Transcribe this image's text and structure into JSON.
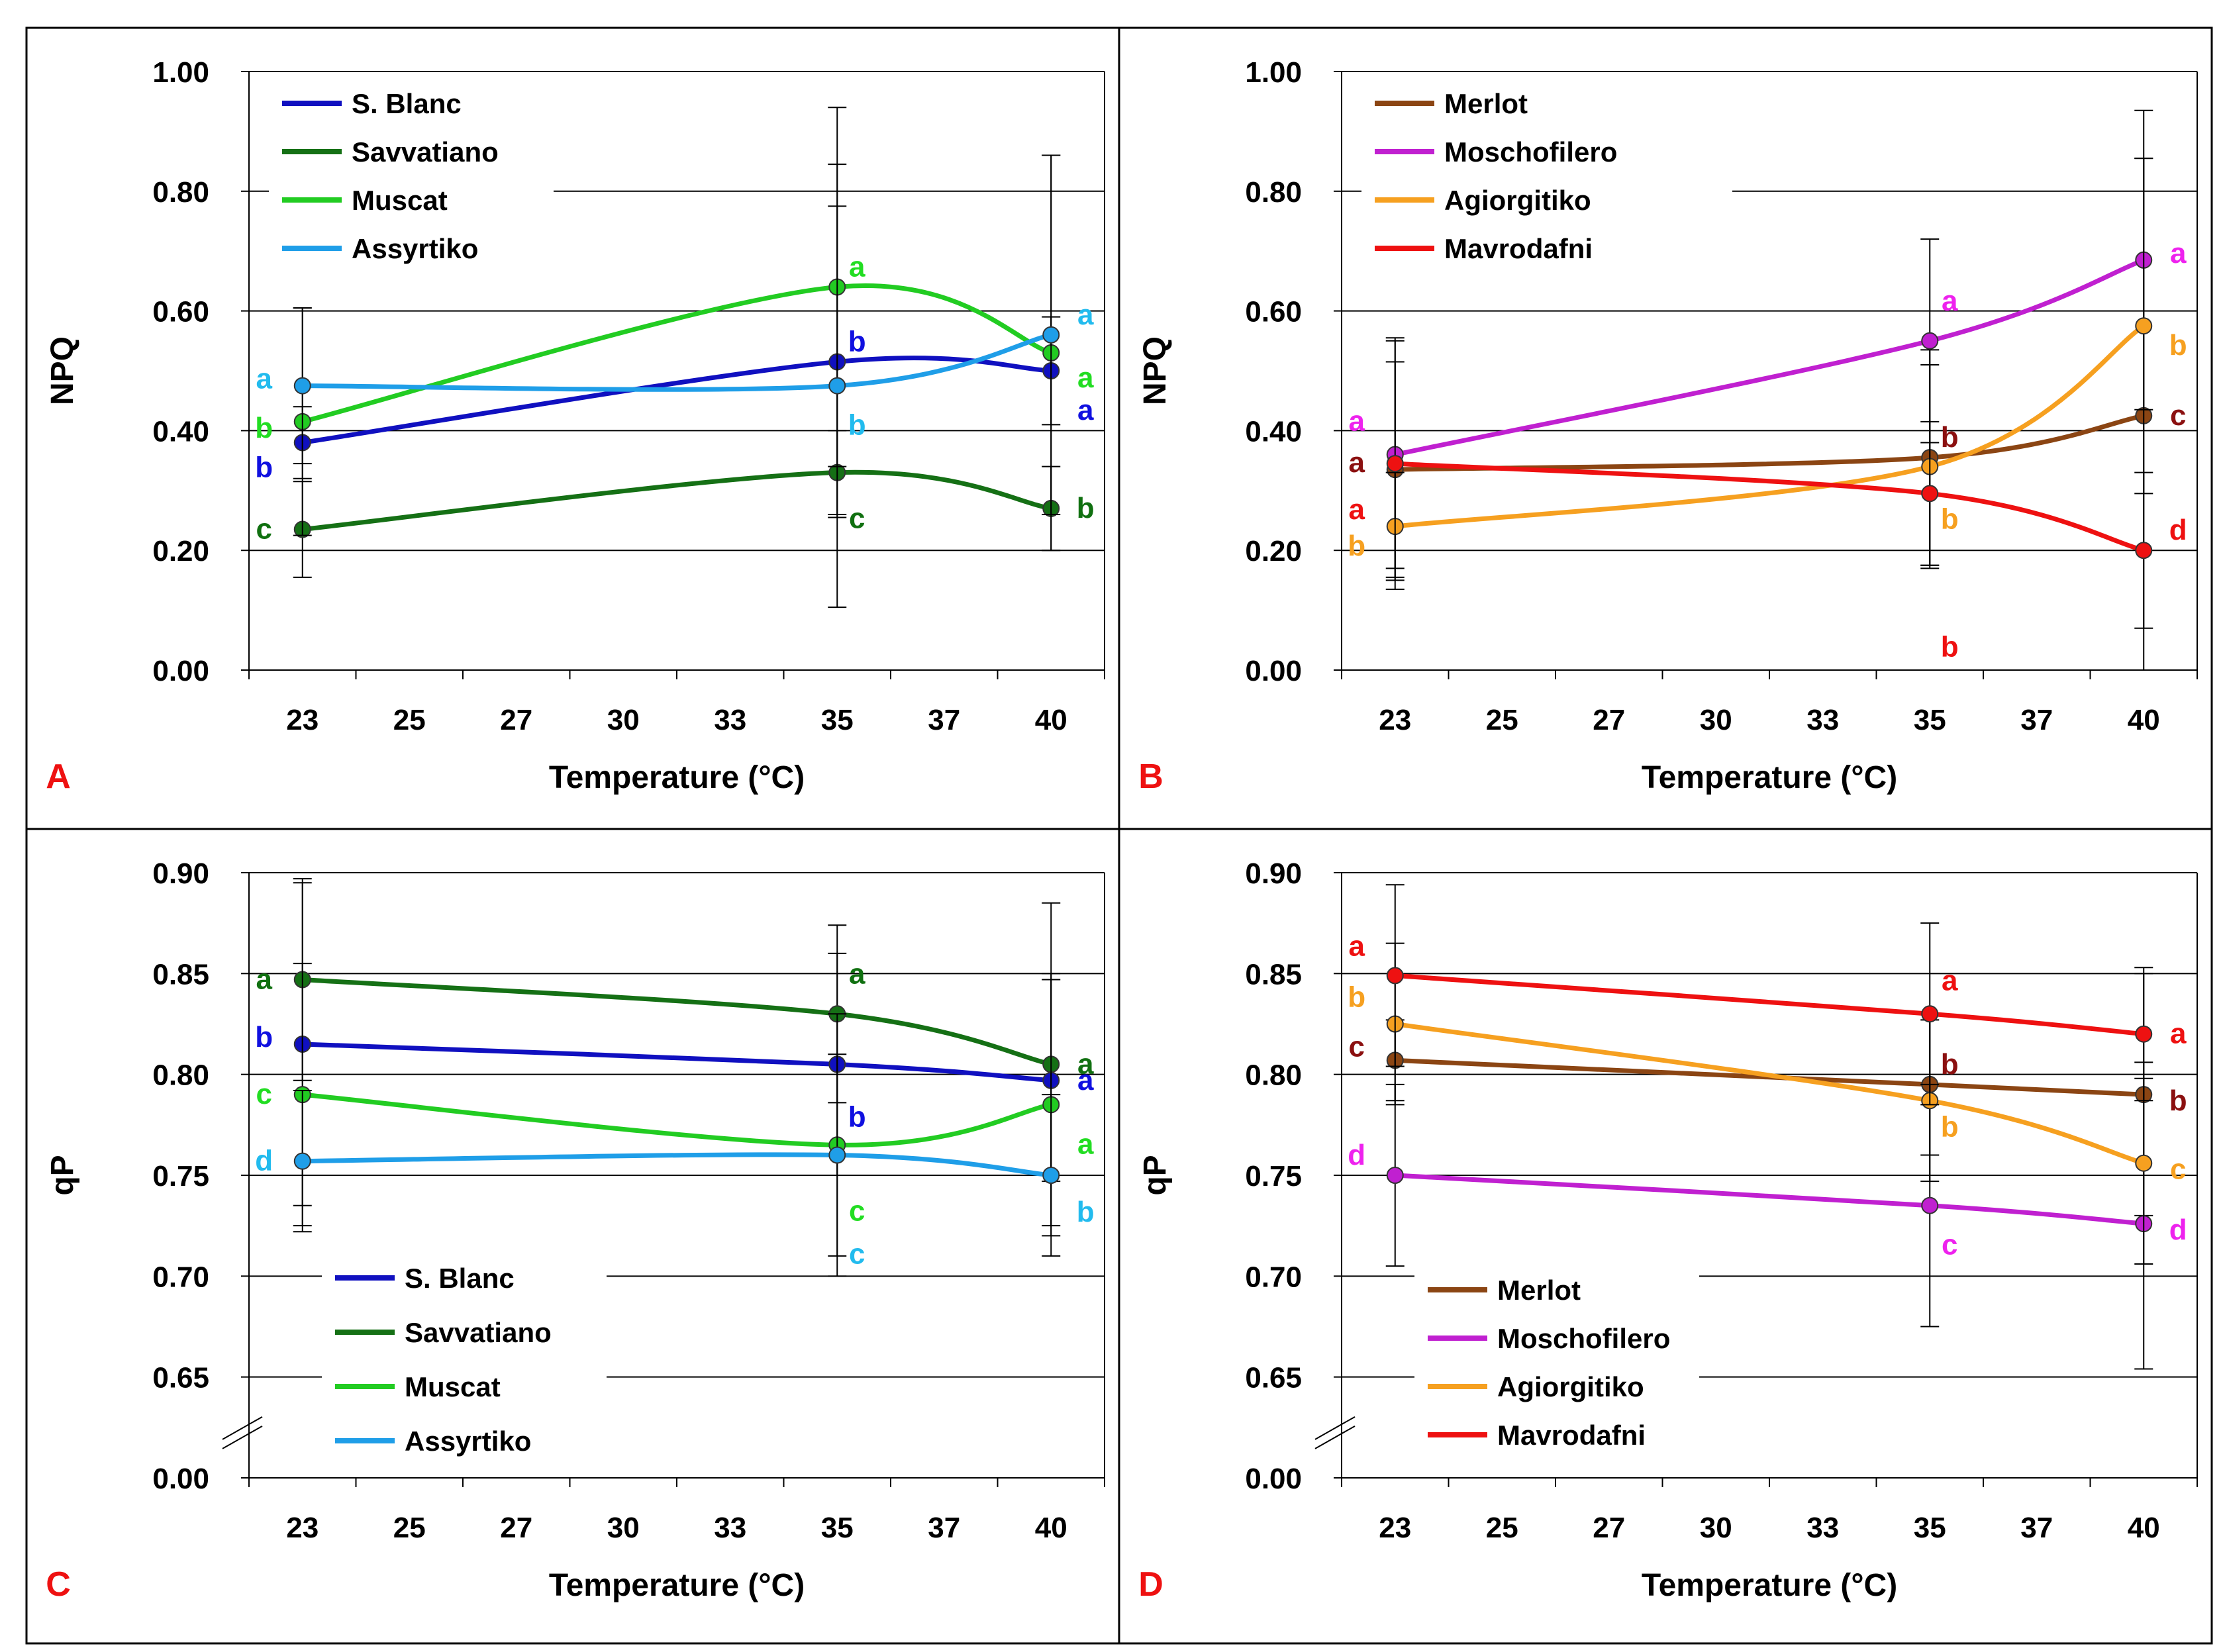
{
  "chart_data": [
    {
      "type": "line",
      "panel_label": "A",
      "xlabel": "Temperature (°C)",
      "ylabel": "NPQ",
      "x_ticks": [
        "23",
        "25",
        "27",
        "30",
        "33",
        "35",
        "37",
        "40"
      ],
      "x_points": [
        "23",
        "35",
        "40"
      ],
      "y_ticks": [
        "0.00",
        "0.20",
        "0.40",
        "0.60",
        "0.80",
        "1.00"
      ],
      "ylim": [
        0,
        1
      ],
      "grid": true,
      "legend_position": "top-left",
      "series": [
        {
          "name": "S. Blanc",
          "color": "#1010c0",
          "label_color": "#1010e0",
          "values": [
            0.38,
            0.515,
            0.5
          ],
          "errors": [
            0.06,
            0.26,
            0.09
          ],
          "letters": [
            "b",
            "b",
            "a"
          ]
        },
        {
          "name": "Savvatiano",
          "color": "#157015",
          "label_color": "#107010",
          "values": [
            0.235,
            0.33,
            0.27
          ],
          "errors": [
            0.08,
            0.07,
            0.07
          ],
          "letters": [
            "c",
            "c",
            "b"
          ]
        },
        {
          "name": "Muscat",
          "color": "#22cc22",
          "label_color": "#22dd22",
          "values": [
            0.415,
            0.64,
            0.53
          ],
          "errors": [
            0.19,
            0.3,
            0.33
          ],
          "letters": [
            "b",
            "a",
            "a"
          ]
        },
        {
          "name": "Assyrtiko",
          "color": "#1f9ee8",
          "label_color": "#22bbee",
          "values": [
            0.475,
            0.475,
            0.56
          ],
          "errors": [
            0.13,
            0.37,
            0.3
          ],
          "letters": [
            "a",
            "b",
            "a"
          ]
        }
      ]
    },
    {
      "type": "line",
      "panel_label": "B",
      "xlabel": "Temperature (°C)",
      "ylabel": "NPQ",
      "x_ticks": [
        "23",
        "25",
        "27",
        "30",
        "33",
        "35",
        "37",
        "40"
      ],
      "x_points": [
        "23",
        "35",
        "40"
      ],
      "y_ticks": [
        "0.00",
        "0.20",
        "0.40",
        "0.60",
        "0.80",
        "1.00"
      ],
      "ylim": [
        0,
        1
      ],
      "grid": true,
      "legend_position": "top-left",
      "series": [
        {
          "name": "Merlot",
          "color": "#8b4513",
          "label_color": "#8b1010",
          "values": [
            0.335,
            0.355,
            0.425
          ],
          "errors": [
            0.18,
            0.18,
            0.43
          ],
          "letters": [
            "a",
            "b",
            "c"
          ]
        },
        {
          "name": "Moschofilero",
          "color": "#c020d0",
          "label_color": "#ee22ee",
          "values": [
            0.36,
            0.55,
            0.685
          ],
          "errors": [
            0.19,
            0.17,
            0.25
          ],
          "letters": [
            "a",
            "a",
            "a"
          ]
        },
        {
          "name": "Agiorgitiko",
          "color": "#f6a020",
          "label_color": "#f6a020",
          "values": [
            0.24,
            0.34,
            0.575
          ],
          "errors": [
            0.09,
            0.17,
            0.28
          ],
          "letters": [
            "b",
            "b",
            "b"
          ]
        },
        {
          "name": "Mavrodafni",
          "color": "#ee1111",
          "label_color": "#ee1111",
          "values": [
            0.345,
            0.295,
            0.2
          ],
          "errors": [
            0.21,
            0.12,
            0.13
          ],
          "letters": [
            "a",
            "b",
            "d"
          ]
        }
      ]
    },
    {
      "type": "line",
      "panel_label": "C",
      "xlabel": "Temperature (°C)",
      "ylabel": "qP",
      "x_ticks": [
        "23",
        "25",
        "27",
        "30",
        "33",
        "35",
        "37",
        "40"
      ],
      "x_points": [
        "23",
        "35",
        "40"
      ],
      "y_ticks": [
        "0.00",
        "0.65",
        "0.70",
        "0.75",
        "0.80",
        "0.85",
        "0.90"
      ],
      "ylim": [
        0.6,
        0.9
      ],
      "axis_break": "between 0.00 and 0.65",
      "grid": true,
      "legend_position": "bottom-left",
      "series": [
        {
          "name": "S. Blanc",
          "color": "#1010c0",
          "label_color": "#1010e0",
          "values": [
            0.815,
            0.805,
            0.797
          ],
          "errors": [
            0.08,
            0.055,
            0.05
          ],
          "letters": [
            "b",
            "b",
            "a"
          ]
        },
        {
          "name": "Savvatiano",
          "color": "#157015",
          "label_color": "#107010",
          "values": [
            0.847,
            0.83,
            0.805
          ],
          "errors": [
            0.05,
            0.044,
            0.08
          ],
          "letters": [
            "a",
            "a",
            "a"
          ]
        },
        {
          "name": "Muscat",
          "color": "#22cc22",
          "label_color": "#22dd22",
          "values": [
            0.79,
            0.765,
            0.785
          ],
          "errors": [
            0.065,
            0.065,
            0.065
          ],
          "letters": [
            "c",
            "c",
            "a"
          ]
        },
        {
          "name": "Assyrtiko",
          "color": "#1f9ee8",
          "label_color": "#22bbee",
          "values": [
            0.757,
            0.76,
            0.75
          ],
          "errors": [
            0.035,
            0.05,
            0.04
          ],
          "letters": [
            "d",
            "c",
            "b"
          ]
        }
      ]
    },
    {
      "type": "line",
      "panel_label": "D",
      "xlabel": "Temperature (°C)",
      "ylabel": "qP",
      "x_ticks": [
        "23",
        "25",
        "27",
        "30",
        "33",
        "35",
        "37",
        "40"
      ],
      "x_points": [
        "23",
        "35",
        "40"
      ],
      "y_ticks": [
        "0.00",
        "0.65",
        "0.70",
        "0.75",
        "0.80",
        "0.85",
        "0.90"
      ],
      "ylim": [
        0.6,
        0.9
      ],
      "axis_break": "between 0.00 and 0.65",
      "grid": true,
      "legend_position": "bottom-left",
      "series": [
        {
          "name": "Merlot",
          "color": "#8b4513",
          "label_color": "#8b1010",
          "values": [
            0.807,
            0.795,
            0.79
          ],
          "errors": [
            0.02,
            0.035,
            0.06
          ],
          "letters": [
            "c",
            "b",
            "b"
          ]
        },
        {
          "name": "Moschofilero",
          "color": "#c020d0",
          "label_color": "#ee22ee",
          "values": [
            0.75,
            0.735,
            0.726
          ],
          "errors": [
            0.045,
            0.06,
            0.072
          ],
          "letters": [
            "d",
            "c",
            "d"
          ]
        },
        {
          "name": "Agiorgitiko",
          "color": "#f6a020",
          "label_color": "#f6a020",
          "values": [
            0.825,
            0.787,
            0.756
          ],
          "errors": [
            0.04,
            0.04,
            0.05
          ],
          "letters": [
            "b",
            "b",
            "c"
          ]
        },
        {
          "name": "Mavrodafni",
          "color": "#ee1111",
          "label_color": "#ee1111",
          "values": [
            0.849,
            0.83,
            0.82
          ],
          "errors": [
            0.045,
            0.045,
            0.033
          ],
          "letters": [
            "a",
            "a",
            "a"
          ]
        }
      ]
    }
  ],
  "colors": {
    "panel_label": "#ee1111",
    "frame": "#000000",
    "grid": "#000000"
  }
}
